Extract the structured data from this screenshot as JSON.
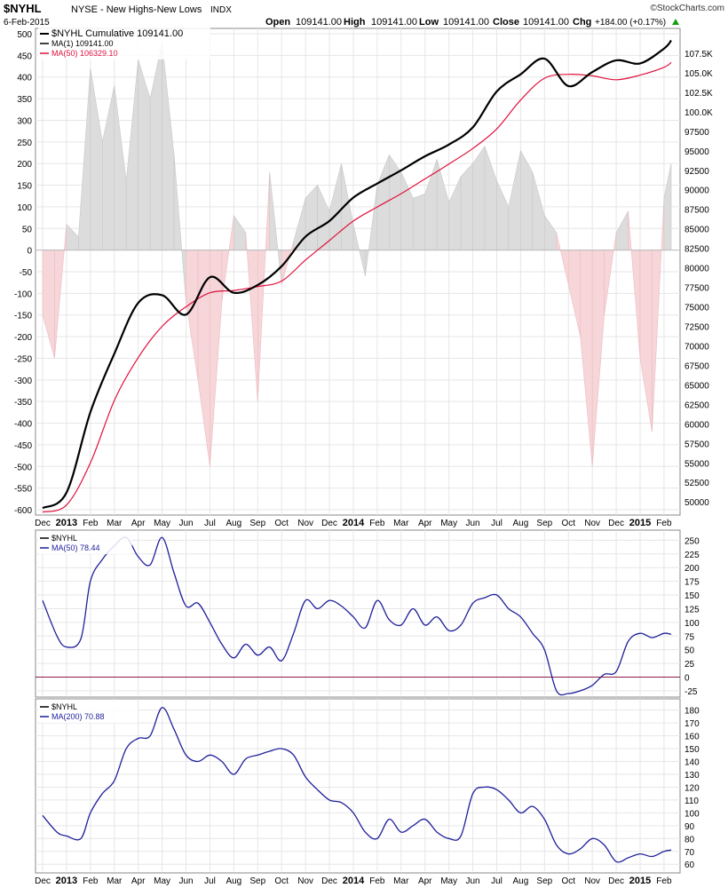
{
  "header": {
    "symbol": "$NYHL",
    "description": "NYSE - New Highs-New Lows",
    "exchange": "INDX",
    "date": "6-Feb-2015",
    "open_label": "Open",
    "open": "109141.00",
    "high_label": "High",
    "high": "109141.00",
    "low_label": "Low",
    "low": "109141.00",
    "close_label": "Close",
    "close": "109141.00",
    "chg_label": "Chg",
    "chg": "+184.00 (+0.17%)",
    "brand": "©StockCharts.com"
  },
  "colors": {
    "cumulative": "#000000",
    "ma50_main": "#e0103c",
    "lower_line": "#1f1f9a",
    "zero_line": "#8b1a4a",
    "hist_pos": "#dcdcdc",
    "hist_neg": "#f6d6d9",
    "grid": "#e6e6e6",
    "axis_text": "#000000",
    "up_arrow": "#14a014"
  },
  "chart_data": [
    {
      "type": "line",
      "panel": "main",
      "legend": [
        {
          "label": "$NYHL Cumulative 109141.00",
          "color": "#000000"
        },
        {
          "label": "MA(1) 109141.00",
          "color": "#000000"
        },
        {
          "label": "MA(50) 106329.10",
          "color": "#e0103c"
        }
      ],
      "left_axis_ticks": [
        500,
        450,
        400,
        350,
        300,
        250,
        200,
        150,
        100,
        50,
        0,
        -50,
        -100,
        -150,
        -200,
        -250,
        -300,
        -350,
        -400,
        -450,
        -500,
        -550,
        -600
      ],
      "right_axis_ticks": [
        "107.5K",
        "105.0K",
        "102.5K",
        "100.0K",
        "97500",
        "95000",
        "92500",
        "90000",
        "87500",
        "85000",
        "82500",
        "80000",
        "77500",
        "75000",
        "72500",
        "70000",
        "67500",
        "65000",
        "62500",
        "60000",
        "57500",
        "55000",
        "52500",
        "50000"
      ],
      "ylim_left": [
        -600,
        500
      ],
      "ylim_right": [
        49000,
        110000
      ],
      "x_labels": [
        "Dec",
        "2013",
        "Feb",
        "Mar",
        "Apr",
        "May",
        "Jun",
        "Jul",
        "Aug",
        "Sep",
        "Oct",
        "Nov",
        "Dec",
        "2014",
        "Feb",
        "Mar",
        "Apr",
        "May",
        "Jun",
        "Jul",
        "Aug",
        "Sep",
        "Oct",
        "Nov",
        "Dec",
        "2015",
        "Feb"
      ],
      "series": [
        {
          "name": "$NYHL Cumulative",
          "axis": "right",
          "x": [
            0,
            1,
            2,
            3,
            4,
            5,
            6,
            7,
            8,
            9,
            10,
            11,
            12,
            13,
            14,
            15,
            16,
            17,
            18,
            19,
            20,
            21,
            22,
            23,
            24,
            25,
            26,
            26.3
          ],
          "values": [
            49200,
            51200,
            61500,
            69000,
            75500,
            76500,
            74000,
            78800,
            76800,
            77800,
            80200,
            84000,
            86000,
            89000,
            90800,
            92500,
            94300,
            95800,
            98000,
            102600,
            104800,
            106800,
            103300,
            105100,
            106600,
            106200,
            108100,
            109141
          ]
        },
        {
          "name": "MA(50)",
          "axis": "right",
          "x": [
            0,
            1,
            2,
            3,
            4,
            5,
            6,
            7,
            8,
            9,
            10,
            11,
            12,
            13,
            14,
            15,
            16,
            17,
            18,
            19,
            20,
            21,
            22,
            23,
            24,
            25,
            26,
            26.3
          ],
          "values": [
            48700,
            49600,
            55000,
            63000,
            68500,
            72500,
            75000,
            76800,
            77100,
            77600,
            78300,
            81000,
            83500,
            86000,
            87800,
            89500,
            91400,
            93300,
            95300,
            97800,
            101500,
            104300,
            104800,
            104600,
            104100,
            104700,
            105700,
            106329
          ]
        },
        {
          "name": "New Highs-New Lows",
          "type": "area",
          "axis": "left",
          "x": [
            0,
            0.5,
            1,
            1.5,
            2,
            2.5,
            3,
            3.5,
            4,
            4.5,
            5,
            5.5,
            6,
            6.5,
            7,
            7.5,
            8,
            8.5,
            9,
            9.5,
            10,
            10.5,
            11,
            11.5,
            12,
            12.5,
            13,
            13.5,
            14,
            14.5,
            15,
            15.5,
            16,
            16.5,
            17,
            17.5,
            18,
            18.5,
            19,
            19.5,
            20,
            20.5,
            21,
            21.5,
            22,
            22.5,
            23,
            23.5,
            24,
            24.5,
            25,
            25.5,
            26,
            26.3
          ],
          "values": [
            -150,
            -250,
            60,
            30,
            420,
            250,
            380,
            160,
            440,
            350,
            480,
            220,
            -120,
            -300,
            -500,
            -120,
            80,
            40,
            -350,
            180,
            -80,
            20,
            120,
            150,
            90,
            200,
            60,
            -60,
            150,
            220,
            180,
            120,
            130,
            210,
            110,
            170,
            200,
            240,
            160,
            100,
            230,
            180,
            80,
            40,
            -80,
            -200,
            -500,
            -150,
            40,
            90,
            -250,
            -420,
            120,
            200
          ]
        }
      ]
    },
    {
      "type": "line",
      "panel": "ma50",
      "legend": [
        {
          "label": "$NYHL",
          "color": "#000000"
        },
        {
          "label": "MA(50) 78.44",
          "color": "#1f1f9a"
        }
      ],
      "right_axis_ticks": [
        250,
        225,
        200,
        175,
        150,
        125,
        100,
        75,
        50,
        25,
        0,
        -25
      ],
      "ylim": [
        -30,
        262
      ],
      "x": [
        0,
        0.6,
        1,
        1.6,
        2,
        2.5,
        3,
        3.5,
        4,
        4.5,
        5,
        5.5,
        6,
        6.5,
        7,
        7.5,
        8,
        8.5,
        9,
        9.5,
        10,
        10.5,
        11,
        11.5,
        12,
        12.5,
        13,
        13.5,
        14,
        14.5,
        15,
        15.5,
        16,
        16.5,
        17,
        17.5,
        18,
        18.5,
        19,
        19.5,
        20,
        20.5,
        21,
        21.5,
        22,
        22.5,
        23,
        23.5,
        24,
        24.5,
        25,
        25.5,
        26,
        26.3
      ],
      "series": [
        {
          "name": "MA(50)",
          "values": [
            140,
            75,
            55,
            70,
            175,
            215,
            240,
            255,
            220,
            205,
            255,
            190,
            130,
            135,
            100,
            60,
            35,
            60,
            40,
            55,
            30,
            80,
            140,
            125,
            140,
            130,
            110,
            90,
            140,
            105,
            95,
            125,
            95,
            110,
            85,
            95,
            135,
            145,
            150,
            125,
            110,
            80,
            50,
            -25,
            -30,
            -25,
            -15,
            5,
            10,
            65,
            80,
            72,
            80,
            78
          ]
        }
      ],
      "zero_line": 0
    },
    {
      "type": "line",
      "panel": "ma200",
      "legend": [
        {
          "label": "$NYHL",
          "color": "#000000"
        },
        {
          "label": "MA(200) 70.88",
          "color": "#1f1f9a"
        }
      ],
      "right_axis_ticks": [
        180,
        170,
        160,
        150,
        140,
        130,
        120,
        110,
        100,
        90,
        80,
        70,
        60
      ],
      "ylim": [
        56,
        186
      ],
      "x": [
        0,
        0.6,
        1,
        1.6,
        2,
        2.5,
        3,
        3.5,
        4,
        4.5,
        5,
        5.5,
        6,
        6.5,
        7,
        7.5,
        8,
        8.5,
        9,
        9.5,
        10,
        10.5,
        11,
        11.5,
        12,
        12.5,
        13,
        13.5,
        14,
        14.5,
        15,
        15.5,
        16,
        16.5,
        17,
        17.5,
        18,
        18.5,
        19,
        19.5,
        20,
        20.5,
        21,
        21.5,
        22,
        22.5,
        23,
        23.5,
        24,
        24.5,
        25,
        25.5,
        26,
        26.3
      ],
      "series": [
        {
          "name": "MA(200)",
          "values": [
            98,
            85,
            82,
            80,
            100,
            115,
            125,
            150,
            158,
            160,
            182,
            165,
            145,
            140,
            145,
            140,
            130,
            142,
            145,
            148,
            150,
            145,
            128,
            118,
            110,
            108,
            100,
            85,
            80,
            95,
            85,
            90,
            95,
            85,
            80,
            82,
            115,
            120,
            118,
            110,
            100,
            105,
            95,
            75,
            68,
            72,
            80,
            75,
            62,
            65,
            68,
            66,
            70,
            71
          ]
        }
      ]
    }
  ]
}
